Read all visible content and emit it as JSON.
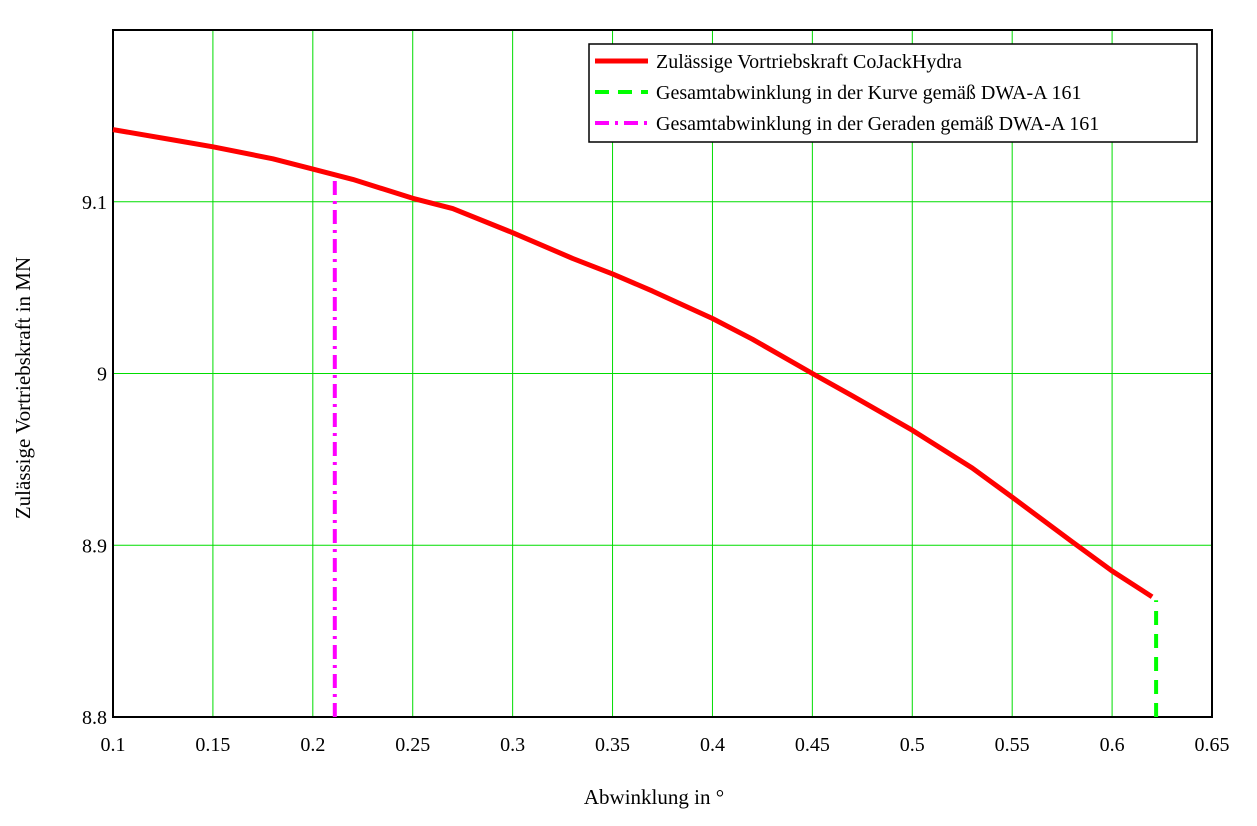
{
  "chart_data": {
    "type": "line",
    "xlabel": "Abwinklung in °",
    "ylabel": "Zulässige Vortriebskraft in MN",
    "xlim": [
      0.1,
      0.65
    ],
    "ylim": [
      8.8,
      9.2
    ],
    "grid": true,
    "legend_position": "top-right",
    "x_ticks": [
      0.1,
      0.15,
      0.2,
      0.25,
      0.3,
      0.35,
      0.4,
      0.45,
      0.5,
      0.55,
      0.6,
      0.65
    ],
    "x_tick_labels": [
      "0.1",
      "0.15",
      "0.2",
      "0.25",
      "0.3",
      "0.35",
      "0.4",
      "0.45",
      "0.5",
      "0.55",
      "0.6",
      "0.65"
    ],
    "y_ticks": [
      8.8,
      8.9,
      9.0,
      9.1
    ],
    "y_tick_labels": [
      "8.8",
      "8.9",
      "9",
      "9.1"
    ],
    "series": [
      {
        "name": "Zulässige Vortriebskraft CoJackHydra",
        "color": "#ff0000",
        "style": "solid",
        "x": [
          0.1,
          0.13,
          0.15,
          0.18,
          0.2,
          0.22,
          0.25,
          0.27,
          0.3,
          0.33,
          0.35,
          0.37,
          0.4,
          0.42,
          0.45,
          0.47,
          0.5,
          0.53,
          0.55,
          0.58,
          0.6,
          0.62
        ],
        "y": [
          9.142,
          9.136,
          9.132,
          9.125,
          9.119,
          9.113,
          9.102,
          9.096,
          9.082,
          9.067,
          9.058,
          9.048,
          9.032,
          9.02,
          9.0,
          8.987,
          8.967,
          8.945,
          8.928,
          8.902,
          8.885,
          8.87
        ]
      },
      {
        "name": "Gesamtabwinklung in der Kurve gemäß DWA-A 161",
        "color": "#00ff00",
        "style": "dashed",
        "x": [
          0.622,
          0.622
        ],
        "y": [
          8.8,
          8.868
        ]
      },
      {
        "name": "Gesamtabwinklung in der Geraden gemäß DWA-A 161",
        "color": "#ff00ff",
        "style": "dashdot",
        "x": [
          0.211,
          0.211
        ],
        "y": [
          8.8,
          9.116
        ]
      }
    ]
  }
}
